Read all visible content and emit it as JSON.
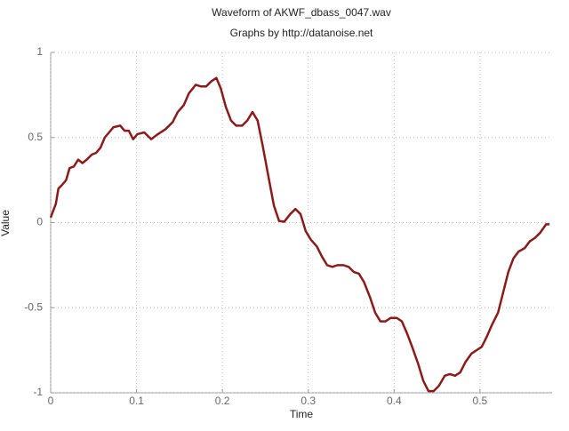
{
  "chart_data": {
    "type": "line",
    "title": "Waveform of AKWF_dbass_0047.wav",
    "subtitle": "Graphs by http://datanoise.net",
    "x_label": "Time",
    "y_label": "Value",
    "x": [
      0,
      0.003,
      0.006,
      0.009,
      0.013,
      0.018,
      0.022,
      0.027,
      0.032,
      0.037,
      0.042,
      0.048,
      0.053,
      0.058,
      0.063,
      0.068,
      0.073,
      0.081,
      0.086,
      0.091,
      0.096,
      0.101,
      0.109,
      0.117,
      0.125,
      0.134,
      0.142,
      0.148,
      0.155,
      0.161,
      0.169,
      0.175,
      0.181,
      0.187,
      0.193,
      0.198,
      0.204,
      0.21,
      0.216,
      0.223,
      0.229,
      0.235,
      0.241,
      0.247,
      0.254,
      0.26,
      0.266,
      0.272,
      0.279,
      0.285,
      0.291,
      0.297,
      0.303,
      0.31,
      0.316,
      0.322,
      0.328,
      0.334,
      0.341,
      0.347,
      0.353,
      0.359,
      0.365,
      0.372,
      0.378,
      0.384,
      0.39,
      0.396,
      0.403,
      0.409,
      0.415,
      0.421,
      0.428,
      0.434,
      0.44,
      0.446,
      0.452,
      0.459,
      0.465,
      0.471,
      0.477,
      0.483,
      0.49,
      0.496,
      0.502,
      0.508,
      0.514,
      0.521,
      0.527,
      0.533,
      0.539,
      0.545,
      0.552,
      0.558,
      0.564,
      0.57,
      0.577,
      0.581
    ],
    "series": [
      {
        "name": "AKWF_dbass_0047",
        "color": "#8b1a1a",
        "values": [
          0.03,
          0.07,
          0.11,
          0.2,
          0.22,
          0.25,
          0.32,
          0.33,
          0.37,
          0.35,
          0.37,
          0.4,
          0.41,
          0.44,
          0.5,
          0.53,
          0.56,
          0.57,
          0.54,
          0.54,
          0.49,
          0.52,
          0.53,
          0.49,
          0.52,
          0.55,
          0.59,
          0.65,
          0.69,
          0.76,
          0.81,
          0.8,
          0.8,
          0.83,
          0.85,
          0.79,
          0.68,
          0.6,
          0.57,
          0.57,
          0.6,
          0.65,
          0.6,
          0.45,
          0.26,
          0.1,
          0.01,
          0.005,
          0.05,
          0.08,
          0.05,
          -0.05,
          -0.1,
          -0.14,
          -0.2,
          -0.25,
          -0.26,
          -0.25,
          -0.25,
          -0.26,
          -0.29,
          -0.3,
          -0.35,
          -0.44,
          -0.53,
          -0.58,
          -0.58,
          -0.56,
          -0.56,
          -0.58,
          -0.65,
          -0.73,
          -0.83,
          -0.93,
          -0.99,
          -0.99,
          -0.96,
          -0.9,
          -0.89,
          -0.9,
          -0.88,
          -0.82,
          -0.77,
          -0.75,
          -0.73,
          -0.67,
          -0.6,
          -0.53,
          -0.41,
          -0.29,
          -0.21,
          -0.17,
          -0.15,
          -0.11,
          -0.09,
          -0.06,
          -0.01,
          -0.01
        ]
      }
    ],
    "xlim": [
      0,
      0.584
    ],
    "ylim": [
      -1,
      1
    ],
    "xticks": [
      0,
      0.1,
      0.2,
      0.3,
      0.4,
      0.5
    ],
    "yticks": [
      -1,
      -0.5,
      0,
      0.5,
      1
    ],
    "grid": true
  }
}
